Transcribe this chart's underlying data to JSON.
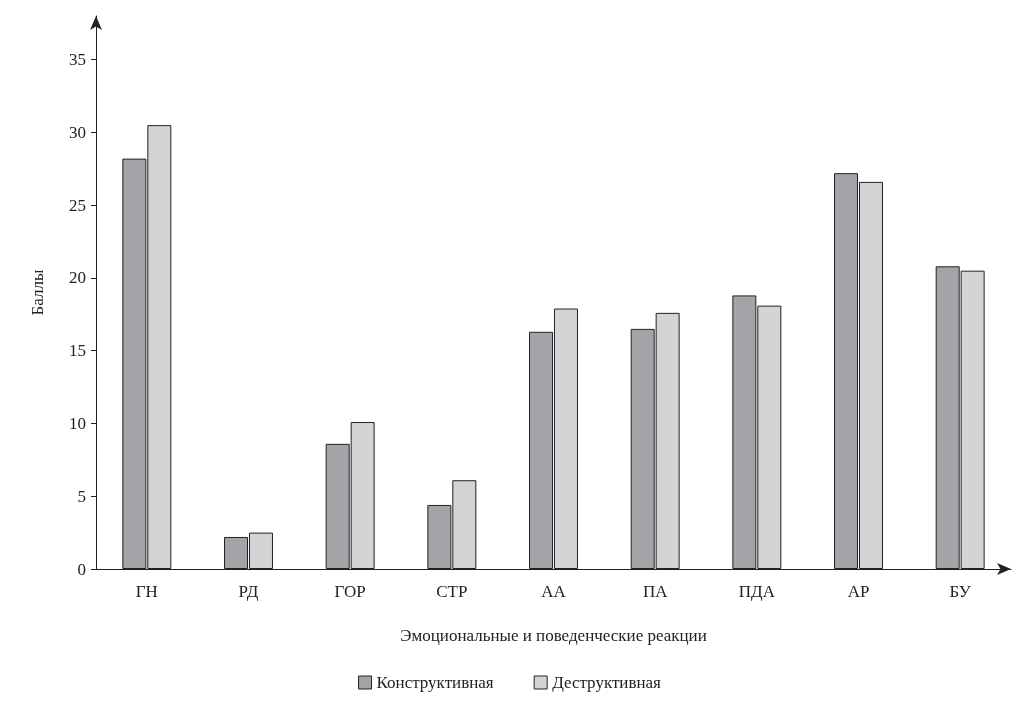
{
  "chart_data": {
    "type": "bar",
    "xlabel": "Эмоциональные и поведенческие реакции",
    "ylabel": "Баллы",
    "categories": [
      "ГН",
      "РД",
      "ГОР",
      "СТР",
      "АА",
      "ПА",
      "ПДА",
      "АР",
      "БУ"
    ],
    "series": [
      {
        "name": "Конструктивная",
        "color": "#a3a3a8",
        "values": [
          28.2,
          2.2,
          8.6,
          4.4,
          16.3,
          16.5,
          18.8,
          27.2,
          20.8
        ]
      },
      {
        "name": "Деструктивная",
        "color": "#d4d4d7",
        "values": [
          30.5,
          2.5,
          10.1,
          6.1,
          17.9,
          17.6,
          18.1,
          26.6,
          20.5
        ]
      }
    ],
    "ylim": [
      0,
      38
    ],
    "yticks": [
      0,
      5,
      10,
      15,
      20,
      25,
      30,
      35
    ],
    "grid": false,
    "legend": "bottom"
  }
}
